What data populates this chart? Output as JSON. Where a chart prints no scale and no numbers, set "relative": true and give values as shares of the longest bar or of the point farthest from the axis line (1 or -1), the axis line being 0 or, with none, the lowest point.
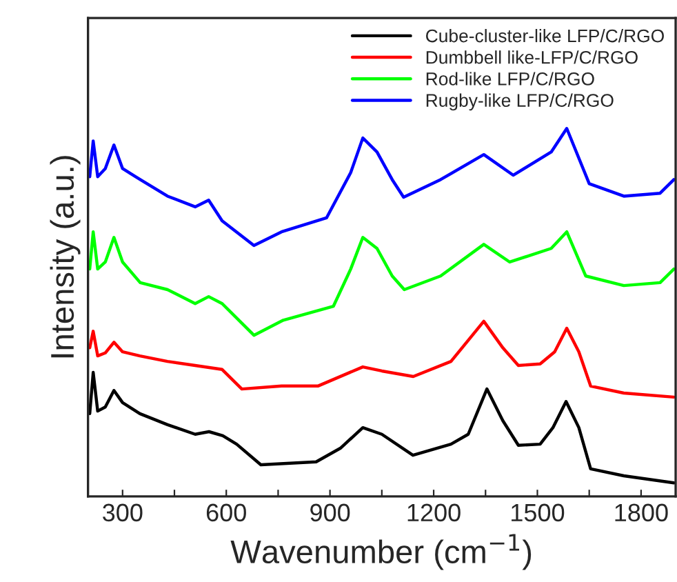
{
  "chart_data": {
    "type": "line",
    "relative": true,
    "xlabel": "Wavenumber (cm$^{−1}$)",
    "ylabel": "Intensity (a.u.)",
    "xlim": [
      200,
      1900
    ],
    "xticks": [
      300,
      {
        "value": 450,
        "label": null
      },
      600,
      {
        "value": 750,
        "label": null
      },
      900,
      {
        "value": 1050,
        "label": null
      },
      1200,
      {
        "value": 1350,
        "label": null
      },
      1500,
      {
        "value": 1650,
        "label": null
      },
      1800
    ],
    "legend": "top right",
    "grid": false,
    "marker": "none",
    "line_style": "solid",
    "series": [
      {
        "name": "Cube-cluster-like LFP/C/RGO",
        "color": "#000000",
        "x": [
          205,
          215,
          228,
          250,
          275,
          300,
          350,
          430,
          510,
          550,
          590,
          630,
          700,
          860,
          930,
          995,
          1050,
          1140,
          1250,
          1300,
          1354,
          1400,
          1445,
          1508,
          1545,
          1583,
          1620,
          1654,
          1750,
          1895
        ],
        "values": [
          0.225,
          0.337,
          0.232,
          0.243,
          0.288,
          0.255,
          0.225,
          0.195,
          0.169,
          0.176,
          0.165,
          0.142,
          0.086,
          0.094,
          0.131,
          0.187,
          0.169,
          0.112,
          0.142,
          0.169,
          0.292,
          0.206,
          0.139,
          0.142,
          0.187,
          0.258,
          0.187,
          0.075,
          0.056,
          0.037
        ]
      },
      {
        "name": "Dumbbell like-LFP/C/RGO",
        "color": "#ff0000",
        "x": [
          205,
          215,
          228,
          250,
          275,
          300,
          350,
          430,
          510,
          588,
          645,
          760,
          865,
          995,
          1050,
          1141,
          1250,
          1299,
          1345,
          1400,
          1445,
          1508,
          1550,
          1585,
          1620,
          1654,
          1750,
          1895
        ],
        "values": [
          0.404,
          0.449,
          0.382,
          0.39,
          0.419,
          0.393,
          0.382,
          0.367,
          0.356,
          0.345,
          0.292,
          0.3,
          0.3,
          0.352,
          0.341,
          0.326,
          0.367,
          0.423,
          0.476,
          0.404,
          0.356,
          0.36,
          0.393,
          0.457,
          0.393,
          0.3,
          0.281,
          0.27
        ]
      },
      {
        "name": "Rod-like LFP/C/RGO",
        "color": "#00ff00",
        "x": [
          205,
          215,
          228,
          250,
          275,
          300,
          351,
          430,
          510,
          549,
          588,
          680,
          765,
          910,
          960,
          995,
          1036,
          1080,
          1115,
          1220,
          1345,
          1420,
          1540,
          1585,
          1640,
          1750,
          1855,
          1895
        ],
        "values": [
          0.618,
          0.719,
          0.618,
          0.637,
          0.704,
          0.637,
          0.581,
          0.562,
          0.524,
          0.543,
          0.524,
          0.438,
          0.479,
          0.517,
          0.618,
          0.704,
          0.674,
          0.599,
          0.562,
          0.599,
          0.685,
          0.637,
          0.674,
          0.719,
          0.599,
          0.573,
          0.581,
          0.618
        ]
      },
      {
        "name": "Rugby-like LFP/C/RGO",
        "color": "#0000ff",
        "x": [
          205,
          215,
          228,
          250,
          275,
          300,
          351,
          430,
          510,
          549,
          588,
          680,
          760,
          890,
          960,
          995,
          1036,
          1080,
          1113,
          1220,
          1345,
          1430,
          1540,
          1585,
          1650,
          1750,
          1855,
          1895
        ],
        "values": [
          0.869,
          0.966,
          0.869,
          0.891,
          0.955,
          0.891,
          0.861,
          0.816,
          0.787,
          0.805,
          0.749,
          0.682,
          0.719,
          0.757,
          0.88,
          0.974,
          0.936,
          0.861,
          0.813,
          0.861,
          0.929,
          0.873,
          0.936,
          1.0,
          0.85,
          0.816,
          0.824,
          0.861
        ]
      }
    ]
  }
}
